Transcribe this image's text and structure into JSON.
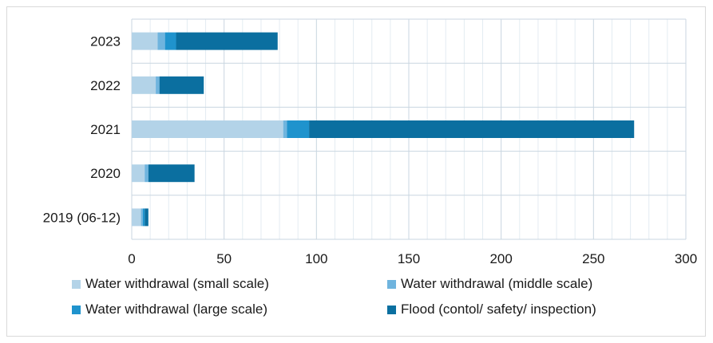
{
  "chart_data": {
    "type": "bar",
    "orientation": "horizontal",
    "stacked": true,
    "categories": [
      "2023",
      "2022",
      "2021",
      "2020",
      "2019 (06-12)"
    ],
    "series": [
      {
        "name": "Water withdrawal (small scale)",
        "color": "#b3d3e8",
        "values": [
          14,
          13,
          82,
          7,
          5
        ]
      },
      {
        "name": "Water withdrawal (middle scale)",
        "color": "#6fb4de",
        "values": [
          4,
          2,
          2,
          2,
          1
        ]
      },
      {
        "name": "Water withdrawal (large scale)",
        "color": "#1f93cd",
        "values": [
          6,
          0,
          12,
          0,
          1
        ]
      },
      {
        "name": "Flood (contol/ safety/ inspection)",
        "color": "#0b6fa0",
        "values": [
          55,
          24,
          176,
          25,
          2
        ]
      }
    ],
    "xlim": [
      0,
      300
    ],
    "xticks": [
      "0",
      "50",
      "100",
      "150",
      "200",
      "250",
      "300"
    ],
    "grid": true,
    "legend_position": "bottom",
    "title": "",
    "xlabel": "",
    "ylabel": ""
  }
}
